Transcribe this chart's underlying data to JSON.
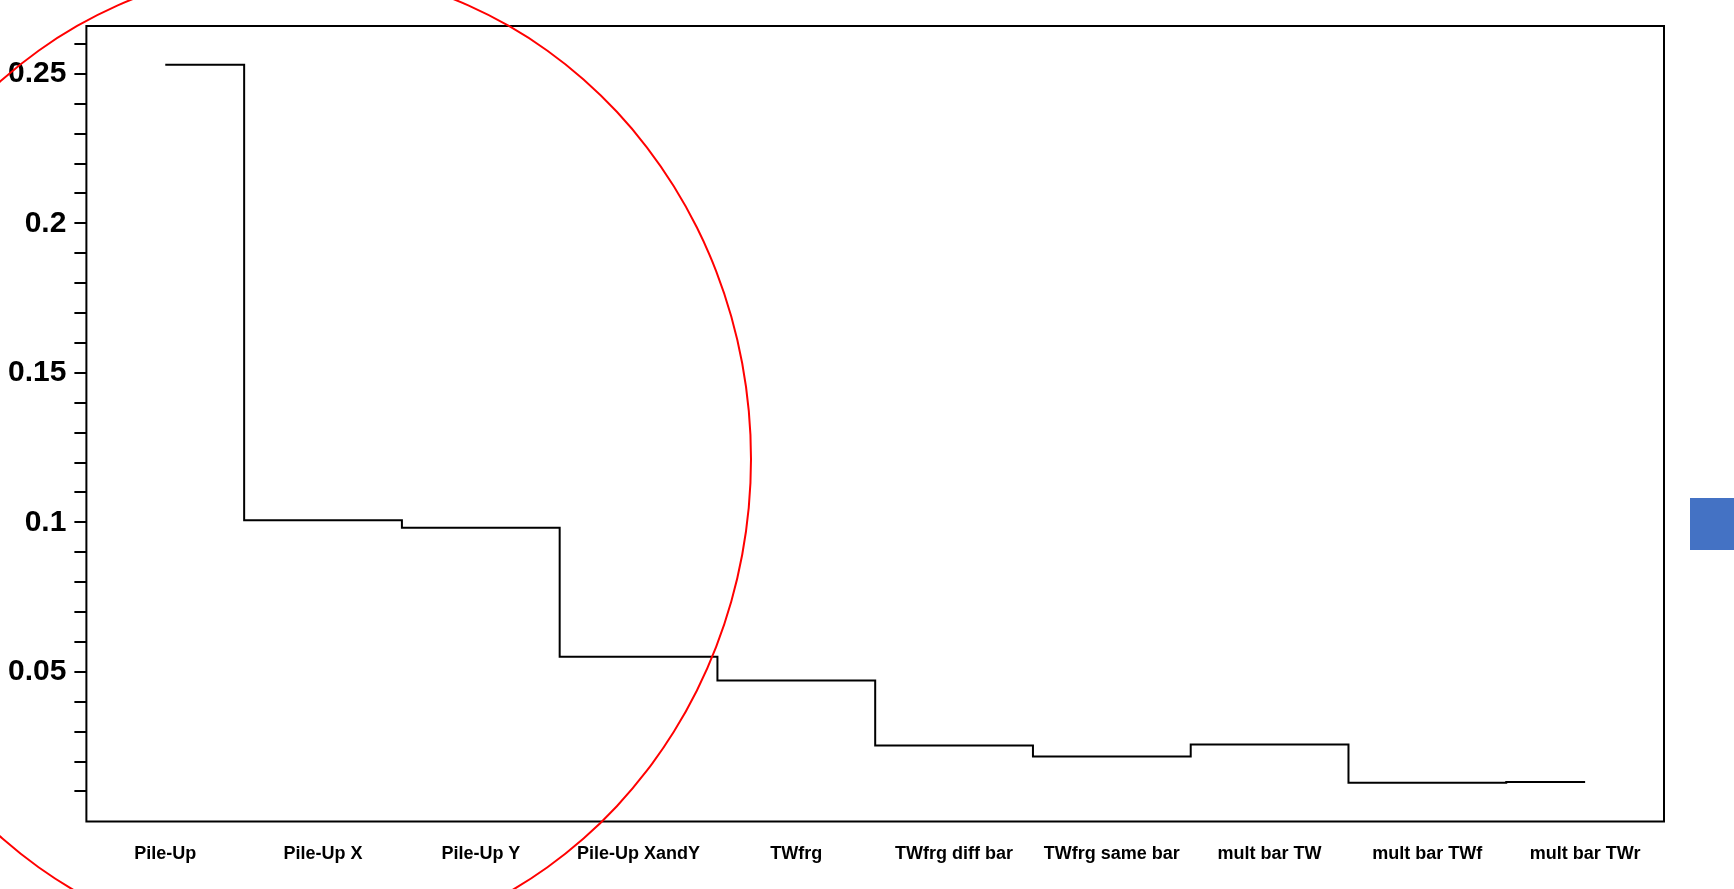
{
  "chart_data": {
    "type": "step",
    "categories": [
      "Pile-Up",
      "Pile-Up X",
      "Pile-Up Y",
      "Pile-Up XandY",
      "TWfrg",
      "TWfrg diff bar",
      "TWfrg same bar",
      "mult bar TW",
      "mult bar TWf",
      "mult bar TWr"
    ],
    "values": [
      0.253,
      0.1007,
      0.0982,
      0.0551,
      0.0471,
      0.0254,
      0.0217,
      0.0257,
      0.0129,
      0.0132
    ],
    "color": "#000000",
    "ylim": [
      0,
      0.266
    ],
    "yticks": [
      {
        "value": 0.01,
        "label": null
      },
      {
        "value": 0.02,
        "label": null
      },
      {
        "value": 0.03,
        "label": null
      },
      {
        "value": 0.04,
        "label": null
      },
      0.05,
      {
        "value": 0.06,
        "label": null
      },
      {
        "value": 0.07,
        "label": null
      },
      {
        "value": 0.08,
        "label": null
      },
      {
        "value": 0.09,
        "label": null
      },
      {
        "value": 0.1,
        "label": "0.1"
      },
      {
        "value": 0.11,
        "label": null
      },
      {
        "value": 0.12,
        "label": null
      },
      {
        "value": 0.13,
        "label": null
      },
      {
        "value": 0.14,
        "label": null
      },
      0.15,
      {
        "value": 0.16,
        "label": null
      },
      {
        "value": 0.17,
        "label": null
      },
      {
        "value": 0.18,
        "label": null
      },
      {
        "value": 0.19,
        "label": null
      },
      {
        "value": 0.2,
        "label": "0.2"
      },
      {
        "value": 0.21,
        "label": null
      },
      {
        "value": 0.22,
        "label": null
      },
      {
        "value": 0.23,
        "label": null
      },
      {
        "value": 0.24,
        "label": null
      },
      0.25,
      {
        "value": 0.26,
        "label": null
      }
    ],
    "grid": false,
    "legend": false
  }
}
